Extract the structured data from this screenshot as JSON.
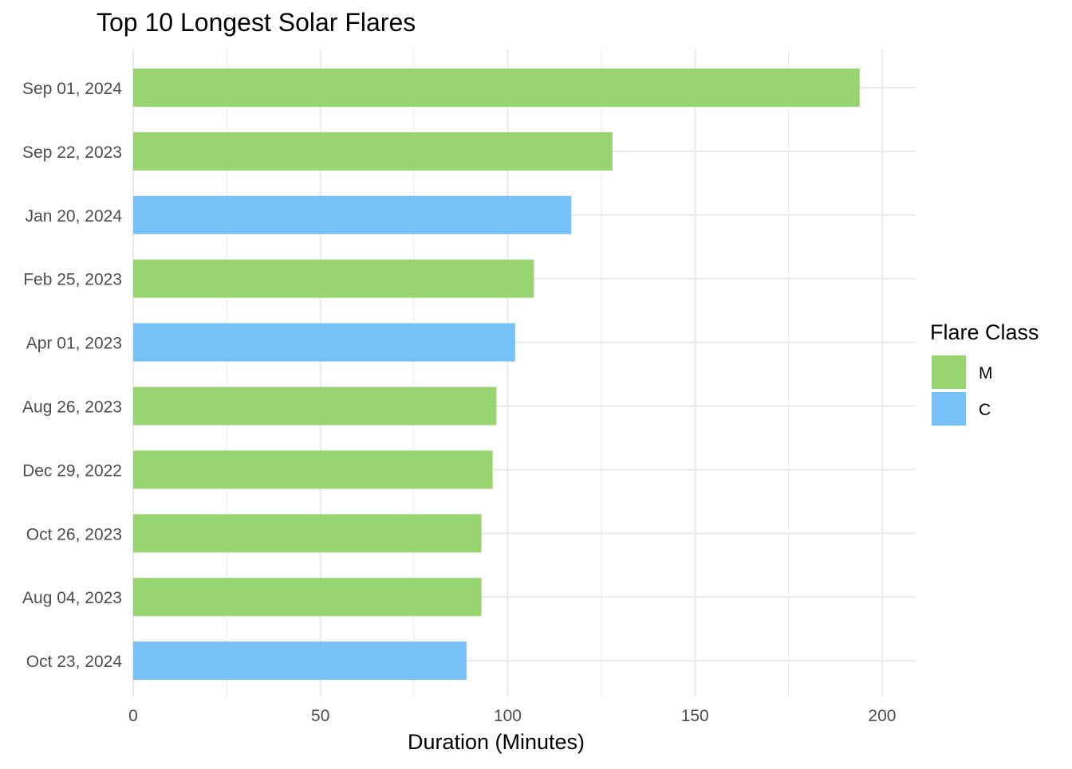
{
  "chart_data": {
    "type": "bar",
    "orientation": "horizontal",
    "title": "Top 10 Longest Solar Flares",
    "xlabel": "Duration (Minutes)",
    "ylabel": "",
    "xlim": [
      0,
      210
    ],
    "x_ticks": [
      0,
      50,
      100,
      150,
      200
    ],
    "grid": true,
    "categories": [
      "Sep 01, 2024",
      "Sep 22, 2023",
      "Jan 20, 2024",
      "Feb 25, 2023",
      "Apr 01, 2023",
      "Aug 26, 2023",
      "Dec 29, 2022",
      "Oct 26, 2023",
      "Aug 04, 2023",
      "Oct 23, 2024"
    ],
    "values": [
      194,
      128,
      117,
      107,
      102,
      97,
      96,
      93,
      93,
      89
    ],
    "classes": [
      "M",
      "M",
      "C",
      "M",
      "C",
      "M",
      "M",
      "M",
      "M",
      "C"
    ],
    "legend": {
      "title": "Flare Class",
      "position": "right",
      "entries": [
        {
          "name": "M",
          "color": "#98d570"
        },
        {
          "name": "C",
          "color": "#76c1f8"
        }
      ]
    },
    "colors": {
      "M": "#98d570",
      "C": "#76c1f8",
      "grid": "#ebebeb"
    }
  }
}
